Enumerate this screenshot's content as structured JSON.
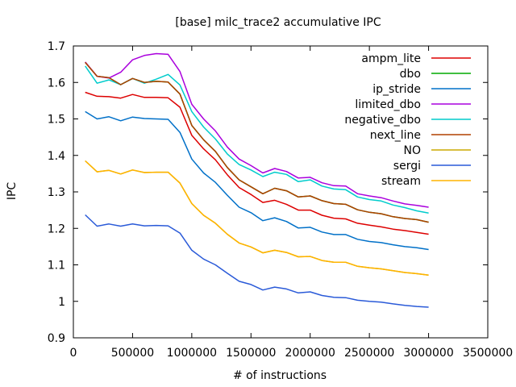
{
  "chart_data": {
    "type": "line",
    "title": "[base] milc_trace2 accumulative IPC",
    "xlabel": "# of instructions",
    "ylabel": "IPC",
    "xlim": [
      0,
      3500000
    ],
    "ylim": [
      0.9,
      1.7
    ],
    "x_ticks": [
      0,
      500000,
      1000000,
      1500000,
      2000000,
      2500000,
      3000000,
      3500000
    ],
    "x_tick_labels": [
      "0",
      "500000",
      "1000000",
      "1500000",
      "2000000",
      "2500000",
      "3000000",
      "3500000"
    ],
    "y_ticks": [
      0.9,
      1.0,
      1.1,
      1.2,
      1.3,
      1.4,
      1.5,
      1.6,
      1.7
    ],
    "y_tick_labels": [
      "0.9",
      "1",
      "1.1",
      "1.2",
      "1.3",
      "1.4",
      "1.5",
      "1.6",
      "1.7"
    ],
    "grid": false,
    "legend_position": "top-right",
    "x": [
      100000,
      200000,
      300000,
      400000,
      500000,
      600000,
      700000,
      800000,
      900000,
      1000000,
      1100000,
      1200000,
      1300000,
      1400000,
      1500000,
      1600000,
      1700000,
      1800000,
      1900000,
      2000000,
      2100000,
      2200000,
      2300000,
      2400000,
      2500000,
      2600000,
      2700000,
      2800000,
      2900000,
      3000000
    ],
    "series": [
      {
        "name": "ampm_lite",
        "color": "#dd0000",
        "values": [
          1.573,
          1.562,
          1.561,
          1.557,
          1.567,
          1.559,
          1.559,
          1.558,
          1.532,
          1.455,
          1.418,
          1.388,
          1.347,
          1.312,
          1.293,
          1.271,
          1.277,
          1.266,
          1.25,
          1.25,
          1.236,
          1.228,
          1.226,
          1.214,
          1.209,
          1.204,
          1.198,
          1.194,
          1.189,
          1.184
        ]
      },
      {
        "name": "dbo",
        "color": "#00aa00",
        "values": [
          1.655,
          1.617,
          1.613,
          1.594,
          1.611,
          1.6,
          1.603,
          1.601,
          1.568,
          1.482,
          1.443,
          1.411,
          1.367,
          1.333,
          1.314,
          1.295,
          1.31,
          1.303,
          1.286,
          1.289,
          1.276,
          1.268,
          1.266,
          1.251,
          1.244,
          1.24,
          1.232,
          1.227,
          1.224,
          1.217
        ]
      },
      {
        "name": "ip_stride",
        "color": "#0070c8",
        "values": [
          1.52,
          1.5,
          1.506,
          1.495,
          1.505,
          1.501,
          1.5,
          1.499,
          1.463,
          1.39,
          1.352,
          1.326,
          1.291,
          1.258,
          1.243,
          1.221,
          1.229,
          1.219,
          1.201,
          1.203,
          1.19,
          1.183,
          1.183,
          1.17,
          1.164,
          1.161,
          1.155,
          1.15,
          1.147,
          1.142
        ]
      },
      {
        "name": "limited_dbo",
        "color": "#aa00dd",
        "values": [
          1.656,
          1.617,
          1.612,
          1.628,
          1.662,
          1.674,
          1.679,
          1.677,
          1.63,
          1.54,
          1.5,
          1.467,
          1.423,
          1.39,
          1.372,
          1.352,
          1.364,
          1.356,
          1.338,
          1.34,
          1.325,
          1.317,
          1.316,
          1.295,
          1.289,
          1.284,
          1.275,
          1.267,
          1.263,
          1.258
        ]
      },
      {
        "name": "negative_dbo",
        "color": "#00cccc",
        "values": [
          1.645,
          1.598,
          1.607,
          1.594,
          1.611,
          1.598,
          1.609,
          1.622,
          1.593,
          1.52,
          1.478,
          1.445,
          1.404,
          1.375,
          1.36,
          1.342,
          1.354,
          1.348,
          1.328,
          1.333,
          1.316,
          1.308,
          1.306,
          1.286,
          1.279,
          1.275,
          1.264,
          1.257,
          1.248,
          1.242
        ]
      },
      {
        "name": "next_line",
        "color": "#b04000",
        "values": [
          1.655,
          1.617,
          1.613,
          1.594,
          1.611,
          1.6,
          1.603,
          1.601,
          1.568,
          1.482,
          1.443,
          1.411,
          1.367,
          1.333,
          1.314,
          1.295,
          1.31,
          1.303,
          1.286,
          1.289,
          1.276,
          1.268,
          1.266,
          1.251,
          1.244,
          1.24,
          1.232,
          1.227,
          1.224,
          1.217
        ]
      },
      {
        "name": "NO",
        "color": "#ccaa00",
        "values": [
          1.385,
          1.355,
          1.359,
          1.349,
          1.36,
          1.353,
          1.354,
          1.354,
          1.324,
          1.268,
          1.236,
          1.214,
          1.184,
          1.16,
          1.149,
          1.133,
          1.14,
          1.134,
          1.122,
          1.123,
          1.112,
          1.107,
          1.107,
          1.096,
          1.092,
          1.089,
          1.084,
          1.079,
          1.076,
          1.072
        ]
      },
      {
        "name": "sergi",
        "color": "#2a5ad8",
        "values": [
          1.237,
          1.206,
          1.212,
          1.206,
          1.212,
          1.207,
          1.208,
          1.207,
          1.187,
          1.14,
          1.116,
          1.1,
          1.077,
          1.055,
          1.046,
          1.031,
          1.039,
          1.034,
          1.023,
          1.026,
          1.016,
          1.011,
          1.01,
          1.003,
          1.0,
          0.998,
          0.993,
          0.989,
          0.986,
          0.984
        ]
      },
      {
        "name": "stream",
        "color": "#ffb400",
        "values": [
          1.385,
          1.355,
          1.359,
          1.349,
          1.36,
          1.353,
          1.354,
          1.354,
          1.324,
          1.268,
          1.236,
          1.214,
          1.184,
          1.16,
          1.149,
          1.133,
          1.14,
          1.134,
          1.122,
          1.123,
          1.112,
          1.107,
          1.107,
          1.096,
          1.092,
          1.089,
          1.084,
          1.079,
          1.076,
          1.072
        ]
      }
    ]
  }
}
